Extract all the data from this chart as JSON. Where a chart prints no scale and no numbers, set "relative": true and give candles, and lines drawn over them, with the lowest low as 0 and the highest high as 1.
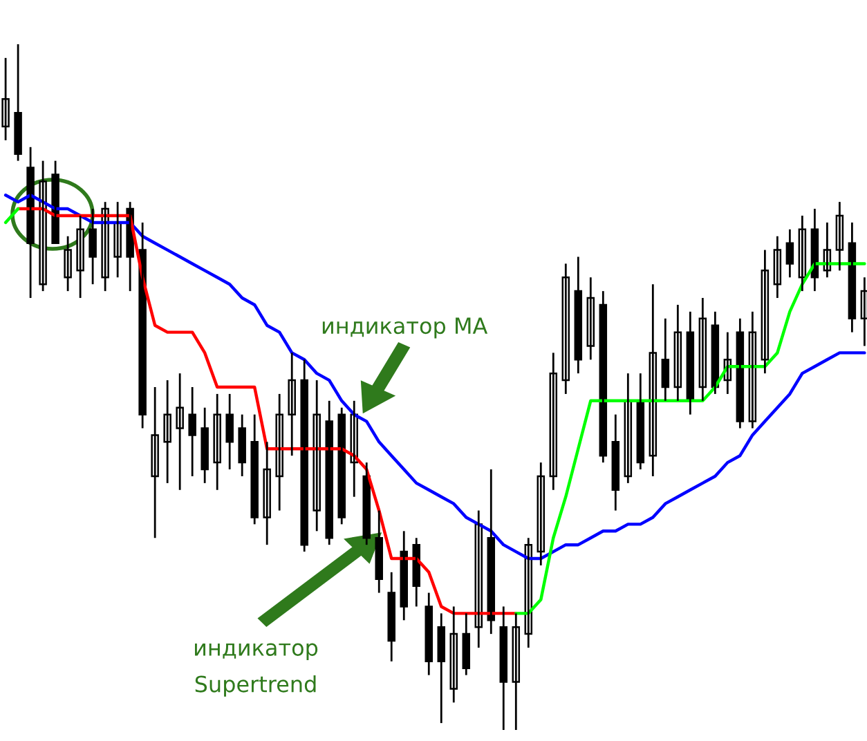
{
  "chart_data": {
    "type": "candlestick",
    "relative": true,
    "legend": false,
    "categories": [
      null,
      null,
      null,
      null,
      null,
      null,
      null,
      null,
      null,
      null,
      null,
      null,
      null,
      null,
      null,
      null,
      null,
      null,
      null,
      null,
      null,
      null,
      null,
      null,
      null,
      null,
      null,
      null,
      null,
      null,
      null,
      null,
      null,
      null,
      null,
      null,
      null,
      null,
      null,
      null,
      null,
      null,
      null,
      null,
      null,
      null,
      null,
      null,
      null,
      null,
      null,
      null,
      null,
      null,
      null,
      null,
      null,
      null,
      null,
      null,
      null,
      null,
      null,
      null,
      null,
      null,
      null,
      null,
      null,
      null
    ],
    "ohlc": [
      [
        0.88,
        0.98,
        0.86,
        0.92
      ],
      [
        0.9,
        1.0,
        0.83,
        0.84
      ],
      [
        0.82,
        0.85,
        0.63,
        0.71
      ],
      [
        0.65,
        0.83,
        0.64,
        0.8
      ],
      [
        0.81,
        0.83,
        0.71,
        0.71
      ],
      [
        0.66,
        0.72,
        0.64,
        0.7
      ],
      [
        0.67,
        0.75,
        0.63,
        0.73
      ],
      [
        0.73,
        0.76,
        0.65,
        0.69
      ],
      [
        0.66,
        0.77,
        0.64,
        0.76
      ],
      [
        0.69,
        0.77,
        0.66,
        0.74
      ],
      [
        0.76,
        0.77,
        0.64,
        0.69
      ],
      [
        0.7,
        0.74,
        0.44,
        0.46
      ],
      [
        0.37,
        0.5,
        0.28,
        0.43
      ],
      [
        0.42,
        0.51,
        0.36,
        0.46
      ],
      [
        0.44,
        0.52,
        0.35,
        0.47
      ],
      [
        0.46,
        0.5,
        0.37,
        0.43
      ],
      [
        0.44,
        0.47,
        0.36,
        0.38
      ],
      [
        0.39,
        0.49,
        0.35,
        0.46
      ],
      [
        0.46,
        0.49,
        0.38,
        0.42
      ],
      [
        0.44,
        0.46,
        0.37,
        0.39
      ],
      [
        0.42,
        0.46,
        0.3,
        0.31
      ],
      [
        0.31,
        0.42,
        0.27,
        0.38
      ],
      [
        0.37,
        0.49,
        0.32,
        0.46
      ],
      [
        0.46,
        0.55,
        0.4,
        0.51
      ],
      [
        0.51,
        0.54,
        0.26,
        0.27
      ],
      [
        0.32,
        0.51,
        0.29,
        0.46
      ],
      [
        0.45,
        0.48,
        0.27,
        0.28
      ],
      [
        0.46,
        0.47,
        0.3,
        0.31
      ],
      [
        0.39,
        0.48,
        0.34,
        0.46
      ],
      [
        0.37,
        0.39,
        0.27,
        0.28
      ],
      [
        0.28,
        0.32,
        0.2,
        0.22
      ],
      [
        0.2,
        0.23,
        0.1,
        0.13
      ],
      [
        0.26,
        0.29,
        0.16,
        0.18
      ],
      [
        0.27,
        0.28,
        0.18,
        0.21
      ],
      [
        0.18,
        0.2,
        0.08,
        0.1
      ],
      [
        0.15,
        0.17,
        0.01,
        0.1
      ],
      [
        0.06,
        0.18,
        0.04,
        0.14
      ],
      [
        0.14,
        0.17,
        0.08,
        0.09
      ],
      [
        0.15,
        0.32,
        0.12,
        0.3
      ],
      [
        0.28,
        0.38,
        0.14,
        0.16
      ],
      [
        0.15,
        0.18,
        0,
        0.07
      ],
      [
        0.07,
        0.17,
        0,
        0.15
      ],
      [
        0.14,
        0.28,
        0.12,
        0.27
      ],
      [
        0.26,
        0.39,
        0.24,
        0.37
      ],
      [
        0.37,
        0.55,
        0.35,
        0.52
      ],
      [
        0.51,
        0.68,
        0.49,
        0.66
      ],
      [
        0.64,
        0.69,
        0.52,
        0.54
      ],
      [
        0.56,
        0.66,
        0.54,
        0.63
      ],
      [
        0.62,
        0.64,
        0.39,
        0.4
      ],
      [
        0.42,
        0.46,
        0.32,
        0.35
      ],
      [
        0.37,
        0.52,
        0.36,
        0.48
      ],
      [
        0.48,
        0.52,
        0.38,
        0.39
      ],
      [
        0.4,
        0.65,
        0.37,
        0.55
      ],
      [
        0.54,
        0.6,
        0.48,
        0.5
      ],
      [
        0.5,
        0.62,
        0.48,
        0.58
      ],
      [
        0.58,
        0.61,
        0.46,
        0.48
      ],
      [
        0.5,
        0.63,
        0.48,
        0.6
      ],
      [
        0.59,
        0.61,
        0.49,
        0.5
      ],
      [
        0.51,
        0.58,
        0.49,
        0.54
      ],
      [
        0.58,
        0.6,
        0.44,
        0.45
      ],
      [
        0.45,
        0.61,
        0.44,
        0.58
      ],
      [
        0.54,
        0.7,
        0.52,
        0.67
      ],
      [
        0.65,
        0.72,
        0.63,
        0.7
      ],
      [
        0.71,
        0.73,
        0.66,
        0.68
      ],
      [
        0.66,
        0.75,
        0.64,
        0.73
      ],
      [
        0.73,
        0.76,
        0.64,
        0.66
      ],
      [
        0.67,
        0.74,
        0.66,
        0.7
      ],
      [
        0.7,
        0.77,
        0.67,
        0.75
      ],
      [
        0.71,
        0.74,
        0.58,
        0.6
      ],
      [
        0.6,
        0.66,
        0.56,
        0.64
      ]
    ],
    "series": [
      {
        "type": "line",
        "color": "#0000ff",
        "values": [
          0.78,
          0.77,
          0.78,
          0.77,
          0.76,
          0.76,
          0.75,
          0.74,
          0.74,
          0.74,
          0.74,
          0.72,
          0.71,
          0.7,
          0.69,
          0.68,
          0.67,
          0.66,
          0.65,
          0.63,
          0.62,
          0.59,
          0.58,
          0.55,
          0.54,
          0.52,
          0.51,
          0.48,
          0.46,
          0.45,
          0.42,
          0.4,
          0.38,
          0.36,
          0.35,
          0.34,
          0.33,
          0.31,
          0.3,
          0.29,
          0.27,
          0.26,
          0.25,
          0.25,
          0.26,
          0.27,
          0.27,
          0.28,
          0.29,
          0.29,
          0.3,
          0.3,
          0.31,
          0.33,
          0.34,
          0.35,
          0.36,
          0.37,
          0.39,
          0.4,
          0.43,
          0.45,
          0.47,
          0.49,
          0.52,
          0.53,
          0.54,
          0.55,
          0.55,
          0.55
        ]
      },
      {
        "type": "line",
        "color": "#ff0000",
        "values": [
          null,
          0.76,
          0.76,
          0.76,
          0.75,
          0.75,
          0.75,
          0.75,
          0.75,
          0.75,
          0.75,
          0.66,
          0.59,
          0.58,
          0.58,
          0.58,
          0.55,
          0.5,
          0.5,
          0.5,
          0.5,
          0.41,
          0.41,
          0.41,
          0.41,
          0.41,
          0.41,
          0.41,
          0.4,
          0.38,
          0.32,
          0.25,
          0.25,
          0.25,
          0.23,
          0.18,
          0.17,
          0.17,
          0.17,
          0.17,
          0.17,
          0.17,
          null,
          null,
          null,
          null,
          null,
          null,
          null,
          null,
          null,
          null,
          null,
          null,
          null,
          null,
          null,
          null,
          null,
          null,
          null,
          null,
          null,
          null,
          null,
          null,
          null,
          null,
          null,
          null
        ]
      },
      {
        "type": "line",
        "color": "#00ff00",
        "values": [
          0.74,
          0.76,
          null,
          null,
          null,
          null,
          null,
          null,
          null,
          null,
          null,
          null,
          null,
          null,
          null,
          null,
          null,
          null,
          null,
          null,
          null,
          null,
          null,
          null,
          null,
          null,
          null,
          null,
          null,
          null,
          null,
          null,
          null,
          null,
          null,
          null,
          null,
          null,
          null,
          null,
          null,
          0.17,
          0.17,
          0.19,
          0.28,
          0.34,
          0.41,
          0.48,
          0.48,
          0.48,
          0.48,
          0.48,
          0.48,
          0.48,
          0.48,
          0.48,
          0.48,
          0.5,
          0.53,
          0.53,
          0.53,
          0.53,
          0.55,
          0.61,
          0.65,
          0.68,
          0.68,
          0.68,
          0.68,
          0.68
        ]
      }
    ],
    "annotations": [
      "индикатор MA",
      "индикатор\nSupertrend"
    ]
  }
}
